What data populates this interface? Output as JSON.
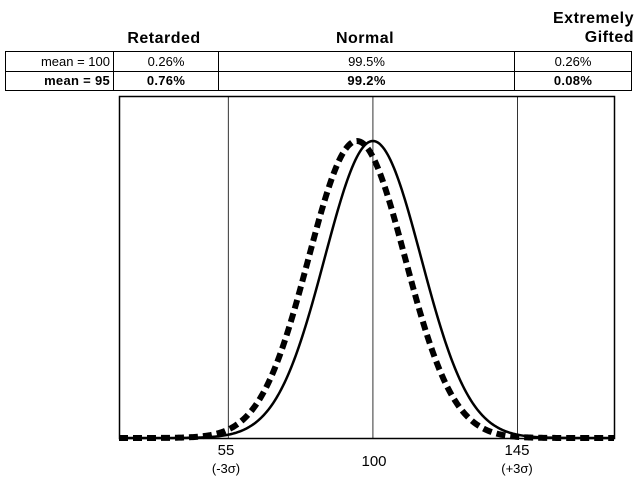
{
  "table": {
    "headers": {
      "retarded": "Retarded",
      "normal": "Normal",
      "gifted_line1": "Extremely",
      "gifted_line2": "Gifted"
    },
    "rows": [
      {
        "label": "mean = 100",
        "retarded": "0.26%",
        "normal": "99.5%",
        "gifted": "0.26%"
      },
      {
        "label": "mean = 95",
        "retarded": "0.76%",
        "normal": "99.2%",
        "gifted": "0.08%"
      }
    ]
  },
  "chart_data": {
    "type": "line",
    "title": "",
    "xlabel": "",
    "ylabel": "",
    "xlim": [
      21,
      175
    ],
    "ticks": [
      {
        "value": 55,
        "label": "55",
        "sublabel": "(-3σ)"
      },
      {
        "value": 100,
        "label": "100",
        "sublabel": ""
      },
      {
        "value": 145,
        "label": "145",
        "sublabel": "(+3σ)"
      }
    ],
    "reference_lines": [
      55,
      100,
      145
    ],
    "series": [
      {
        "mean": 100,
        "sd": 15,
        "style": "solid",
        "color": "#000000"
      },
      {
        "mean": 95,
        "sd": 15,
        "style": "dashed",
        "color": "#000000"
      }
    ]
  }
}
